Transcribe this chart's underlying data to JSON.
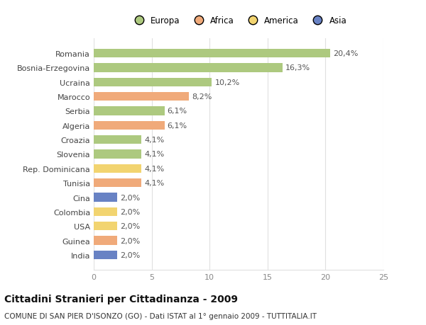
{
  "categories": [
    "Romania",
    "Bosnia-Erzegovina",
    "Ucraina",
    "Marocco",
    "Serbia",
    "Algeria",
    "Croazia",
    "Slovenia",
    "Rep. Dominicana",
    "Tunisia",
    "Cina",
    "Colombia",
    "USA",
    "Guinea",
    "India"
  ],
  "values": [
    20.4,
    16.3,
    10.2,
    8.2,
    6.1,
    6.1,
    4.1,
    4.1,
    4.1,
    4.1,
    2.0,
    2.0,
    2.0,
    2.0,
    2.0
  ],
  "labels": [
    "20,4%",
    "16,3%",
    "10,2%",
    "8,2%",
    "6,1%",
    "6,1%",
    "4,1%",
    "4,1%",
    "4,1%",
    "4,1%",
    "2,0%",
    "2,0%",
    "2,0%",
    "2,0%",
    "2,0%"
  ],
  "continents": [
    "Europa",
    "Europa",
    "Europa",
    "Africa",
    "Europa",
    "Africa",
    "Europa",
    "Europa",
    "America",
    "Africa",
    "Asia",
    "America",
    "America",
    "Africa",
    "Asia"
  ],
  "colors": {
    "Europa": "#adc97f",
    "Africa": "#f0aa7a",
    "America": "#f2d470",
    "Asia": "#6882c4"
  },
  "legend_order": [
    "Europa",
    "Africa",
    "America",
    "Asia"
  ],
  "legend_colors": [
    "#adc97f",
    "#f0aa7a",
    "#f2d470",
    "#6882c4"
  ],
  "xlim": [
    0,
    25
  ],
  "xticks": [
    0,
    5,
    10,
    15,
    20,
    25
  ],
  "title": "Cittadini Stranieri per Cittadinanza - 2009",
  "subtitle": "COMUNE DI SAN PIER D'ISONZO (GO) - Dati ISTAT al 1° gennaio 2009 - TUTTITALIA.IT",
  "background_color": "#ffffff",
  "grid_color": "#e0e0e0",
  "label_fontsize": 8,
  "bar_label_fontsize": 8,
  "title_fontsize": 10,
  "subtitle_fontsize": 7.5,
  "bar_height": 0.6
}
